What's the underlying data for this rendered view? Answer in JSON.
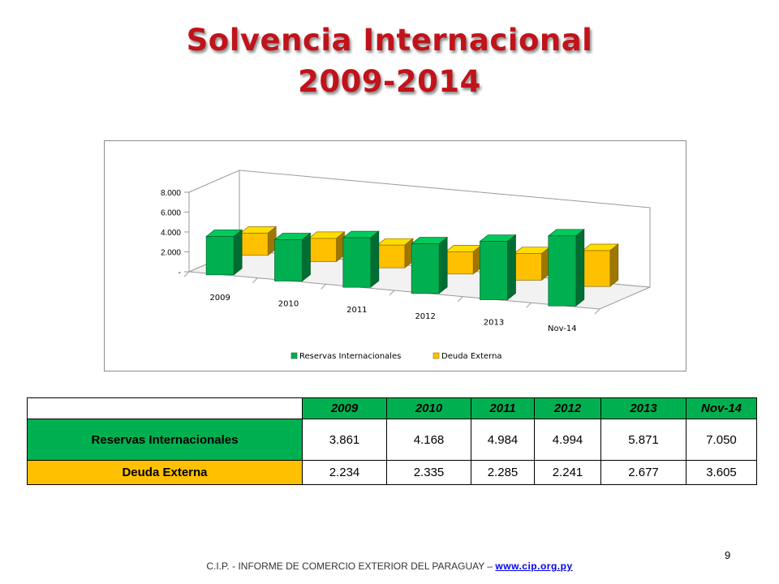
{
  "slide": {
    "title_line1": "Solvencia Internacional",
    "title_line2": "2009-2014",
    "page_number": "9",
    "footer_text": "C.I.P. - INFORME DE COMERCIO EXTERIOR DEL PARAGUAY – ",
    "footer_link": "www.cip.org.py"
  },
  "colors": {
    "title": "#c0131b",
    "reservas": "#00b050",
    "deuda": "#ffc000"
  },
  "chart_data": {
    "type": "bar",
    "categories": [
      "2009",
      "2010",
      "2011",
      "2012",
      "2013",
      "Nov-14"
    ],
    "series": [
      {
        "name": "Reservas Internacionales",
        "values": [
          3861,
          4168,
          4984,
          4994,
          5871,
          7050
        ]
      },
      {
        "name": "Deuda Externa",
        "values": [
          2234,
          2335,
          2285,
          2241,
          2677,
          3605
        ]
      }
    ],
    "y_ticks": [
      "-",
      "2.000",
      "4.000",
      "6.000",
      "8.000"
    ],
    "ylim": [
      0,
      8000
    ],
    "three_d": true,
    "legend_position": "bottom",
    "grid": false
  },
  "table": {
    "corner": "",
    "headers": [
      "2009",
      "2010",
      "2011",
      "2012",
      "2013",
      "Nov-14"
    ],
    "rows": [
      {
        "label": "Reservas Internacionales",
        "values": [
          "3.861",
          "4.168",
          "4.984",
          "4.994",
          "5.871",
          "7.050"
        ]
      },
      {
        "label": "Deuda Externa",
        "values": [
          "2.234",
          "2.335",
          "2.285",
          "2.241",
          "2.677",
          "3.605"
        ]
      }
    ]
  }
}
